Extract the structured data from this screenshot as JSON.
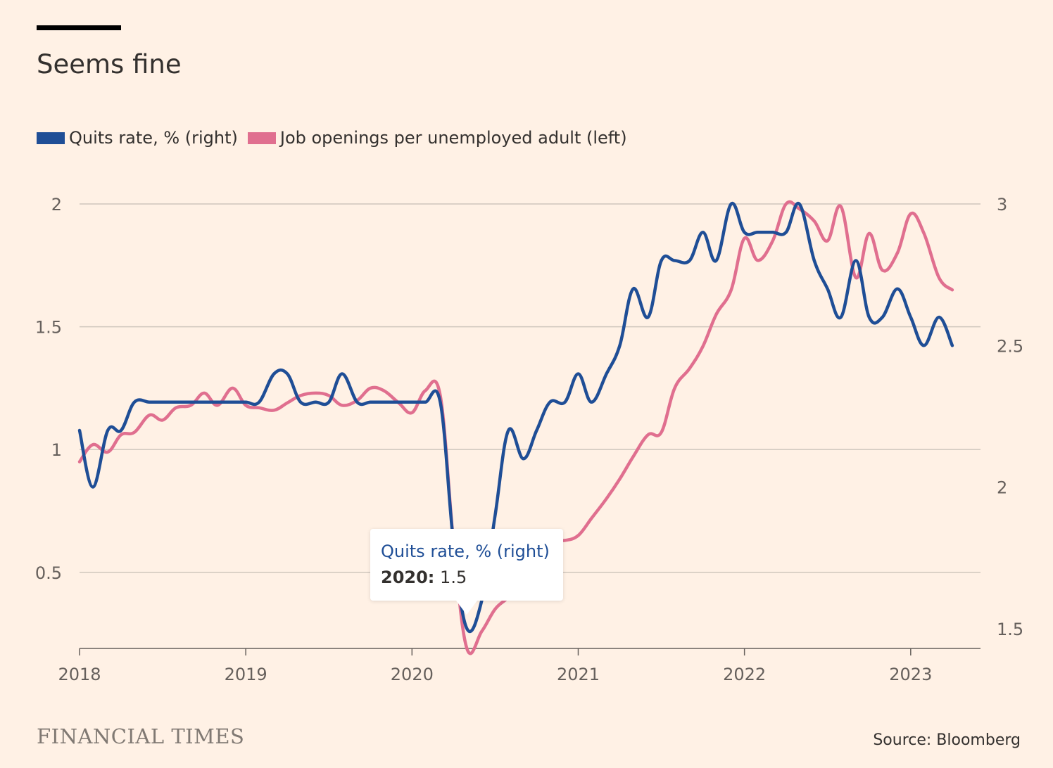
{
  "title": "Seems fine",
  "legend": [
    {
      "label": "Quits rate, % (right)",
      "color": "#1f4e96"
    },
    {
      "label": "Job openings per unemployed adult (left)",
      "color": "#e06f8f"
    }
  ],
  "tooltip": {
    "series": "Quits rate, % (right)",
    "label": "2020:",
    "value": "1.5"
  },
  "brand": "FINANCIAL TIMES",
  "source": "Source: Bloomberg",
  "chart_data": {
    "type": "line",
    "x_tick_labels": [
      "2018",
      "2019",
      "2020",
      "2021",
      "2022",
      "2023"
    ],
    "left_axis": {
      "ticks": [
        "0.5",
        "1",
        "1.5",
        "2"
      ],
      "ylim": [
        0.19,
        2.0
      ]
    },
    "right_axis": {
      "ticks": [
        "1.5",
        "2",
        "2.5",
        "3"
      ],
      "ylim": [
        1.43,
        3.0
      ]
    },
    "xlim": [
      2018.0,
      2023.42
    ],
    "grid": true,
    "legend_position": "top-left",
    "series": [
      {
        "name": "Job openings per unemployed adult (left)",
        "axis": "left",
        "color": "#e06f8f",
        "points": [
          [
            2018.0,
            0.95
          ],
          [
            2018.08,
            1.02
          ],
          [
            2018.17,
            0.99
          ],
          [
            2018.25,
            1.06
          ],
          [
            2018.33,
            1.07
          ],
          [
            2018.42,
            1.14
          ],
          [
            2018.5,
            1.12
          ],
          [
            2018.58,
            1.17
          ],
          [
            2018.67,
            1.18
          ],
          [
            2018.75,
            1.23
          ],
          [
            2018.83,
            1.18
          ],
          [
            2018.92,
            1.25
          ],
          [
            2019.0,
            1.18
          ],
          [
            2019.08,
            1.17
          ],
          [
            2019.17,
            1.16
          ],
          [
            2019.25,
            1.19
          ],
          [
            2019.33,
            1.22
          ],
          [
            2019.42,
            1.23
          ],
          [
            2019.5,
            1.22
          ],
          [
            2019.58,
            1.18
          ],
          [
            2019.67,
            1.2
          ],
          [
            2019.75,
            1.25
          ],
          [
            2019.83,
            1.24
          ],
          [
            2019.92,
            1.19
          ],
          [
            2020.0,
            1.15
          ],
          [
            2020.08,
            1.24
          ],
          [
            2020.17,
            1.22
          ],
          [
            2020.25,
            0.62
          ],
          [
            2020.33,
            0.19
          ],
          [
            2020.42,
            0.26
          ],
          [
            2020.5,
            0.35
          ],
          [
            2020.58,
            0.4
          ],
          [
            2020.67,
            0.48
          ],
          [
            2020.75,
            0.59
          ],
          [
            2020.83,
            0.63
          ],
          [
            2020.92,
            0.63
          ],
          [
            2021.0,
            0.65
          ],
          [
            2021.08,
            0.72
          ],
          [
            2021.17,
            0.8
          ],
          [
            2021.25,
            0.88
          ],
          [
            2021.33,
            0.97
          ],
          [
            2021.42,
            1.06
          ],
          [
            2021.5,
            1.07
          ],
          [
            2021.58,
            1.25
          ],
          [
            2021.67,
            1.33
          ],
          [
            2021.75,
            1.42
          ],
          [
            2021.83,
            1.55
          ],
          [
            2021.92,
            1.65
          ],
          [
            2022.0,
            1.86
          ],
          [
            2022.08,
            1.77
          ],
          [
            2022.17,
            1.85
          ],
          [
            2022.25,
            2.0
          ],
          [
            2022.33,
            1.98
          ],
          [
            2022.42,
            1.93
          ],
          [
            2022.5,
            1.85
          ],
          [
            2022.58,
            1.99
          ],
          [
            2022.67,
            1.7
          ],
          [
            2022.75,
            1.88
          ],
          [
            2022.83,
            1.73
          ],
          [
            2022.92,
            1.8
          ],
          [
            2023.0,
            1.96
          ],
          [
            2023.08,
            1.88
          ],
          [
            2023.17,
            1.7
          ],
          [
            2023.25,
            1.65
          ]
        ]
      },
      {
        "name": "Quits rate, % (right)",
        "axis": "right",
        "color": "#1f4e96",
        "points": [
          [
            2018.0,
            2.2
          ],
          [
            2018.08,
            2.0
          ],
          [
            2018.17,
            2.2
          ],
          [
            2018.25,
            2.2
          ],
          [
            2018.33,
            2.3
          ],
          [
            2018.42,
            2.3
          ],
          [
            2018.5,
            2.3
          ],
          [
            2018.58,
            2.3
          ],
          [
            2018.67,
            2.3
          ],
          [
            2018.75,
            2.3
          ],
          [
            2018.83,
            2.3
          ],
          [
            2018.92,
            2.3
          ],
          [
            2019.0,
            2.3
          ],
          [
            2019.08,
            2.3
          ],
          [
            2019.17,
            2.4
          ],
          [
            2019.25,
            2.4
          ],
          [
            2019.33,
            2.3
          ],
          [
            2019.42,
            2.3
          ],
          [
            2019.5,
            2.3
          ],
          [
            2019.58,
            2.4
          ],
          [
            2019.67,
            2.3
          ],
          [
            2019.75,
            2.3
          ],
          [
            2019.83,
            2.3
          ],
          [
            2019.92,
            2.3
          ],
          [
            2020.0,
            2.3
          ],
          [
            2020.08,
            2.3
          ],
          [
            2020.17,
            2.3
          ],
          [
            2020.25,
            1.8
          ],
          [
            2020.33,
            1.5
          ],
          [
            2020.42,
            1.6
          ],
          [
            2020.5,
            1.9
          ],
          [
            2020.58,
            2.2
          ],
          [
            2020.67,
            2.1
          ],
          [
            2020.75,
            2.2
          ],
          [
            2020.83,
            2.3
          ],
          [
            2020.92,
            2.3
          ],
          [
            2021.0,
            2.4
          ],
          [
            2021.08,
            2.3
          ],
          [
            2021.17,
            2.4
          ],
          [
            2021.25,
            2.5
          ],
          [
            2021.33,
            2.7
          ],
          [
            2021.42,
            2.6
          ],
          [
            2021.5,
            2.8
          ],
          [
            2021.58,
            2.8
          ],
          [
            2021.67,
            2.8
          ],
          [
            2021.75,
            2.9
          ],
          [
            2021.83,
            2.8
          ],
          [
            2021.92,
            3.0
          ],
          [
            2022.0,
            2.9
          ],
          [
            2022.08,
            2.9
          ],
          [
            2022.17,
            2.9
          ],
          [
            2022.25,
            2.9
          ],
          [
            2022.33,
            3.0
          ],
          [
            2022.42,
            2.8
          ],
          [
            2022.5,
            2.7
          ],
          [
            2022.58,
            2.6
          ],
          [
            2022.67,
            2.8
          ],
          [
            2022.75,
            2.6
          ],
          [
            2022.83,
            2.6
          ],
          [
            2022.92,
            2.7
          ],
          [
            2023.0,
            2.6
          ],
          [
            2023.08,
            2.5
          ],
          [
            2023.17,
            2.6
          ],
          [
            2023.25,
            2.5
          ]
        ]
      }
    ]
  }
}
